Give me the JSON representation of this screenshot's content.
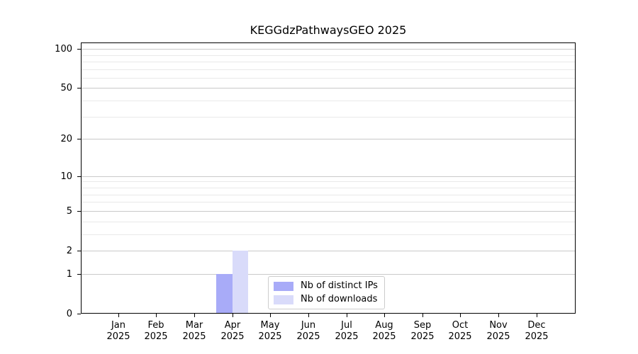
{
  "chart_data": {
    "type": "bar",
    "title": "KEGGdzPathwaysGEO 2025",
    "year": "2025",
    "categories": [
      "Jan",
      "Feb",
      "Mar",
      "Apr",
      "May",
      "Jun",
      "Jul",
      "Aug",
      "Sep",
      "Oct",
      "Nov",
      "Dec"
    ],
    "series": [
      {
        "name": "Nb of distinct IPs",
        "color": "#a8abf8",
        "values": [
          0,
          0,
          0,
          1,
          0,
          0,
          0,
          0,
          0,
          0,
          0,
          0
        ]
      },
      {
        "name": "Nb of downloads",
        "color": "#d9dbfa",
        "values": [
          0,
          0,
          0,
          2,
          0,
          0,
          0,
          0,
          0,
          0,
          0,
          0
        ]
      }
    ],
    "yscale": "log1p",
    "ylim": [
      0,
      112
    ],
    "y_major_ticks": [
      0,
      1,
      2,
      5,
      10,
      20,
      50,
      100
    ],
    "y_minor_ticks": [
      3,
      4,
      6,
      7,
      8,
      9,
      30,
      40,
      60,
      70,
      80,
      90
    ],
    "grid": "horizontal",
    "legend_position": "lower center"
  },
  "colors": {
    "major_grid": "#c9c9c9",
    "minor_grid": "#e9e9e9",
    "spine": "#000000",
    "legend_border": "#cccccc",
    "background": "#ffffff"
  }
}
